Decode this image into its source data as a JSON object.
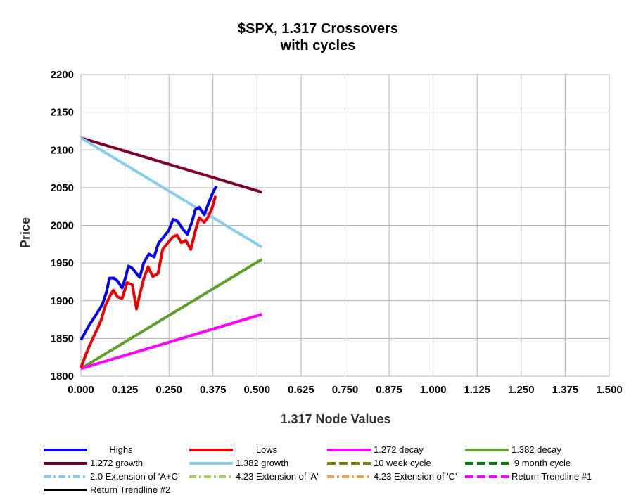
{
  "chart_data": {
    "type": "line",
    "title": "$SPX, 1.317 Crossovers",
    "subtitle": "with cycles",
    "xlabel": "1.317 Node Values",
    "ylabel": "Price",
    "xlim": [
      0,
      1.5
    ],
    "ylim": [
      1800,
      2200
    ],
    "x_ticks": [
      "0.000",
      "0.125",
      "0.250",
      "0.375",
      "0.500",
      "0.625",
      "0.750",
      "0.875",
      "1.000",
      "1.125",
      "1.250",
      "1.375",
      "1.500"
    ],
    "y_ticks": [
      "1800",
      "1850",
      "1900",
      "1950",
      "2000",
      "2050",
      "2100",
      "2150",
      "2200"
    ],
    "grid": true,
    "legend_position": "bottom",
    "series": [
      {
        "name": "Highs",
        "color": "#0000ee",
        "style": "solid",
        "points": [
          [
            0.0,
            1848
          ],
          [
            0.012,
            1858
          ],
          [
            0.024,
            1868
          ],
          [
            0.037,
            1877
          ],
          [
            0.049,
            1886
          ],
          [
            0.061,
            1895
          ],
          [
            0.073,
            1912
          ],
          [
            0.081,
            1930
          ],
          [
            0.094,
            1930
          ],
          [
            0.104,
            1926
          ],
          [
            0.117,
            1917
          ],
          [
            0.128,
            1933
          ],
          [
            0.135,
            1946
          ],
          [
            0.146,
            1943
          ],
          [
            0.158,
            1936
          ],
          [
            0.167,
            1931
          ],
          [
            0.179,
            1951
          ],
          [
            0.193,
            1962
          ],
          [
            0.208,
            1958
          ],
          [
            0.221,
            1977
          ],
          [
            0.234,
            1984
          ],
          [
            0.249,
            1993
          ],
          [
            0.262,
            2008
          ],
          [
            0.275,
            2005
          ],
          [
            0.288,
            1996
          ],
          [
            0.302,
            1988
          ],
          [
            0.315,
            2004
          ],
          [
            0.325,
            2021
          ],
          [
            0.336,
            2024
          ],
          [
            0.35,
            2014
          ],
          [
            0.363,
            2030
          ],
          [
            0.377,
            2046
          ],
          [
            0.385,
            2052
          ]
        ]
      },
      {
        "name": "Lows",
        "color": "#ee0000",
        "style": "solid",
        "points": [
          [
            0.0,
            1811
          ],
          [
            0.012,
            1826
          ],
          [
            0.024,
            1840
          ],
          [
            0.037,
            1853
          ],
          [
            0.049,
            1865
          ],
          [
            0.058,
            1875
          ],
          [
            0.069,
            1893
          ],
          [
            0.081,
            1905
          ],
          [
            0.092,
            1914
          ],
          [
            0.104,
            1905
          ],
          [
            0.117,
            1903
          ],
          [
            0.131,
            1924
          ],
          [
            0.146,
            1921
          ],
          [
            0.158,
            1889
          ],
          [
            0.167,
            1908
          ],
          [
            0.179,
            1930
          ],
          [
            0.191,
            1945
          ],
          [
            0.204,
            1932
          ],
          [
            0.219,
            1936
          ],
          [
            0.232,
            1968
          ],
          [
            0.249,
            1978
          ],
          [
            0.262,
            1985
          ],
          [
            0.273,
            1987
          ],
          [
            0.285,
            1977
          ],
          [
            0.298,
            1980
          ],
          [
            0.312,
            1968
          ],
          [
            0.325,
            1993
          ],
          [
            0.336,
            2010
          ],
          [
            0.35,
            2004
          ],
          [
            0.36,
            2010
          ],
          [
            0.372,
            2022
          ],
          [
            0.382,
            2039
          ]
        ]
      },
      {
        "name": "1.272 decay",
        "color": "#ff00ff",
        "style": "solid",
        "points": [
          [
            0.0,
            1810
          ],
          [
            0.514,
            1882
          ]
        ]
      },
      {
        "name": "1.382 decay",
        "color": "#5ca127",
        "style": "solid",
        "points": [
          [
            0.0,
            1810
          ],
          [
            0.514,
            1955
          ]
        ]
      },
      {
        "name": "1.272 growth",
        "color": "#800026",
        "style": "solid",
        "points": [
          [
            0.0,
            2116
          ],
          [
            0.514,
            2044
          ]
        ]
      },
      {
        "name": "1.382 growth",
        "color": "#87cdf0",
        "style": "solid",
        "points": [
          [
            0.0,
            2116
          ],
          [
            0.514,
            1971
          ]
        ]
      },
      {
        "name": "10 week cycle",
        "color": "#7f7f00",
        "style": "dashed",
        "points": []
      },
      {
        "name": "9 month cycle",
        "color": "#008000",
        "style": "dashed",
        "points": []
      },
      {
        "name": "2.0 Extension of 'A+C'",
        "color": "#87cdf0",
        "style": "dashdot",
        "points": []
      },
      {
        "name": "4.23 Extension of 'A'",
        "color": "#a8d060",
        "style": "dashdot",
        "points": []
      },
      {
        "name": "4.23 Extension of 'C'",
        "color": "#f0a050",
        "style": "dashdot",
        "points": []
      },
      {
        "name": "Return Trendline #1",
        "color": "#ff00ff",
        "style": "dashed",
        "points": []
      },
      {
        "name": "Return Trendline #2",
        "color": "#000000",
        "style": "solid",
        "points": []
      }
    ],
    "legend_order": [
      "Highs",
      "Lows",
      "1.272 decay",
      "1.382 decay",
      "1.272 growth",
      "1.382 growth",
      "10 week cycle",
      "9 month cycle",
      "2.0 Extension of 'A+C'",
      "4.23 Extension of 'A'",
      "4.23 Extension of 'C'",
      "Return Trendline #1",
      "Return Trendline #2"
    ]
  }
}
